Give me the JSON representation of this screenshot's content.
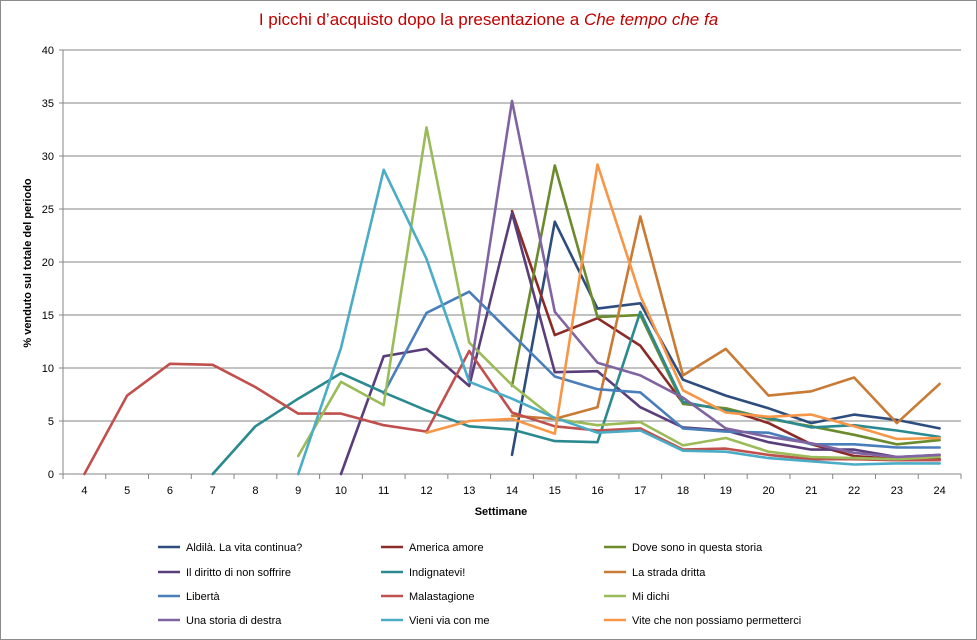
{
  "chart_data": {
    "type": "line",
    "title_prefix": "I picchi d’acquisto dopo la presentazione a ",
    "title_italic": "Che tempo che fa",
    "xlabel": "Settimane",
    "ylabel": "% venduto sul totale del periodo",
    "x": [
      4,
      5,
      6,
      7,
      8,
      9,
      10,
      11,
      12,
      13,
      14,
      15,
      16,
      17,
      18,
      19,
      20,
      21,
      22,
      23,
      24
    ],
    "ylim": [
      0,
      40
    ],
    "yticks": [
      0,
      5,
      10,
      15,
      20,
      25,
      30,
      35,
      40
    ],
    "grid": true,
    "legend_position": "bottom",
    "series": [
      {
        "name": "Aldilà. La vita continua?",
        "color": "#2e4d7f",
        "points": [
          [
            14,
            1.8
          ],
          [
            15,
            23.8
          ],
          [
            16,
            15.6
          ],
          [
            17,
            16.1
          ],
          [
            18,
            8.9
          ],
          [
            19,
            7.4
          ],
          [
            20,
            6.2
          ],
          [
            21,
            4.8
          ],
          [
            22,
            5.6
          ],
          [
            23,
            5.1
          ],
          [
            24,
            4.3
          ]
        ]
      },
      {
        "name": "America amore",
        "color": "#8b2a27",
        "points": [
          [
            14,
            24.8
          ],
          [
            15,
            13.1
          ],
          [
            16,
            14.7
          ],
          [
            17,
            12.1
          ],
          [
            18,
            6.7
          ],
          [
            19,
            6.1
          ],
          [
            20,
            4.8
          ],
          [
            21,
            2.8
          ],
          [
            22,
            1.7
          ],
          [
            23,
            1.4
          ],
          [
            24,
            1.4
          ]
        ]
      },
      {
        "name": "Dove sono in questa storia",
        "color": "#6b8b2c",
        "points": [
          [
            14,
            8.3
          ],
          [
            15,
            29.1
          ],
          [
            16,
            14.8
          ],
          [
            17,
            15.0
          ],
          [
            18,
            6.6
          ],
          [
            19,
            6.2
          ],
          [
            20,
            5.2
          ],
          [
            21,
            4.5
          ],
          [
            22,
            3.7
          ],
          [
            23,
            2.8
          ],
          [
            24,
            3.2
          ]
        ]
      },
      {
        "name": "Il diritto di non soffrire",
        "color": "#5a3e7a",
        "points": [
          [
            10,
            0
          ],
          [
            11,
            11.1
          ],
          [
            12,
            11.8
          ],
          [
            13,
            8.3
          ],
          [
            14,
            24.6
          ],
          [
            15,
            9.6
          ],
          [
            16,
            9.7
          ],
          [
            17,
            6.3
          ],
          [
            18,
            4.4
          ],
          [
            19,
            4.1
          ],
          [
            20,
            3.0
          ],
          [
            21,
            2.3
          ],
          [
            22,
            2.3
          ],
          [
            23,
            1.6
          ],
          [
            24,
            1.8
          ]
        ]
      },
      {
        "name": "Indignatevi!",
        "color": "#2a8a8f",
        "points": [
          [
            7,
            0
          ],
          [
            8,
            4.5
          ],
          [
            9,
            7.1
          ],
          [
            10,
            9.5
          ],
          [
            11,
            7.7
          ],
          [
            12,
            6.0
          ],
          [
            13,
            4.5
          ],
          [
            14,
            4.2
          ],
          [
            15,
            3.1
          ],
          [
            16,
            3.0
          ],
          [
            17,
            15.3
          ],
          [
            18,
            6.8
          ],
          [
            19,
            6.0
          ],
          [
            20,
            5.3
          ],
          [
            21,
            4.4
          ],
          [
            22,
            4.6
          ],
          [
            23,
            4.1
          ],
          [
            24,
            3.5
          ]
        ]
      },
      {
        "name": "La strada dritta",
        "color": "#c97a35",
        "points": [
          [
            14,
            5.5
          ],
          [
            15,
            5.2
          ],
          [
            16,
            6.3
          ],
          [
            17,
            24.3
          ],
          [
            18,
            9.3
          ],
          [
            19,
            11.8
          ],
          [
            20,
            7.4
          ],
          [
            21,
            7.8
          ],
          [
            22,
            9.1
          ],
          [
            23,
            4.8
          ],
          [
            24,
            8.5
          ]
        ]
      },
      {
        "name": "Libertà",
        "color": "#4a7ebb",
        "points": [
          [
            11,
            7.6
          ],
          [
            12,
            15.2
          ],
          [
            13,
            17.2
          ],
          [
            14,
            13.2
          ],
          [
            15,
            9.2
          ],
          [
            16,
            8.0
          ],
          [
            17,
            7.7
          ],
          [
            18,
            4.3
          ],
          [
            19,
            4.0
          ],
          [
            20,
            3.9
          ],
          [
            21,
            2.8
          ],
          [
            22,
            2.8
          ],
          [
            23,
            2.5
          ],
          [
            24,
            2.5
          ]
        ]
      },
      {
        "name": "Malastagione",
        "color": "#c0504d",
        "points": [
          [
            4,
            0
          ],
          [
            5,
            7.4
          ],
          [
            6,
            10.4
          ],
          [
            7,
            10.3
          ],
          [
            8,
            8.2
          ],
          [
            9,
            5.7
          ],
          [
            10,
            5.7
          ],
          [
            11,
            4.6
          ],
          [
            12,
            4.0
          ],
          [
            13,
            11.6
          ],
          [
            14,
            5.8
          ],
          [
            15,
            4.5
          ],
          [
            16,
            4.1
          ],
          [
            17,
            4.3
          ],
          [
            18,
            2.3
          ],
          [
            19,
            2.4
          ],
          [
            20,
            1.8
          ],
          [
            21,
            1.4
          ],
          [
            22,
            1.4
          ],
          [
            23,
            1.3
          ],
          [
            24,
            1.3
          ]
        ]
      },
      {
        "name": "Mi dichi",
        "color": "#9bbb59",
        "points": [
          [
            9,
            1.7
          ],
          [
            10,
            8.7
          ],
          [
            11,
            6.5
          ],
          [
            12,
            32.7
          ],
          [
            13,
            12.4
          ],
          [
            14,
            8.4
          ],
          [
            15,
            5.2
          ],
          [
            16,
            4.6
          ],
          [
            17,
            4.9
          ],
          [
            18,
            2.7
          ],
          [
            19,
            3.4
          ],
          [
            20,
            2.1
          ],
          [
            21,
            1.6
          ],
          [
            22,
            1.5
          ],
          [
            23,
            1.4
          ],
          [
            24,
            1.6
          ]
        ]
      },
      {
        "name": "Una storia di destra",
        "color": "#8064a2",
        "points": [
          [
            13,
            9.0
          ],
          [
            14,
            35.2
          ],
          [
            15,
            15.3
          ],
          [
            16,
            10.5
          ],
          [
            17,
            9.3
          ],
          [
            18,
            7.2
          ],
          [
            19,
            4.3
          ],
          [
            20,
            3.5
          ],
          [
            21,
            2.9
          ],
          [
            22,
            2.0
          ],
          [
            23,
            1.6
          ],
          [
            24,
            1.8
          ]
        ]
      },
      {
        "name": "Vieni via con me",
        "color": "#4bacc6",
        "points": [
          [
            9,
            0
          ],
          [
            10,
            11.9
          ],
          [
            11,
            28.7
          ],
          [
            12,
            20.3
          ],
          [
            13,
            8.7
          ],
          [
            14,
            7.1
          ],
          [
            15,
            5.3
          ],
          [
            16,
            3.9
          ],
          [
            17,
            4.1
          ],
          [
            18,
            2.2
          ],
          [
            19,
            2.1
          ],
          [
            20,
            1.5
          ],
          [
            21,
            1.2
          ],
          [
            22,
            0.9
          ],
          [
            23,
            1.0
          ],
          [
            24,
            1.0
          ]
        ]
      },
      {
        "name": "Vite che non possiamo permetterci",
        "color": "#f79646",
        "points": [
          [
            12,
            3.9
          ],
          [
            13,
            5.0
          ],
          [
            14,
            5.2
          ],
          [
            15,
            3.8
          ],
          [
            16,
            29.2
          ],
          [
            17,
            16.8
          ],
          [
            18,
            7.9
          ],
          [
            19,
            5.8
          ],
          [
            20,
            5.4
          ],
          [
            21,
            5.6
          ],
          [
            22,
            4.5
          ],
          [
            23,
            3.3
          ],
          [
            24,
            3.4
          ]
        ]
      }
    ]
  }
}
